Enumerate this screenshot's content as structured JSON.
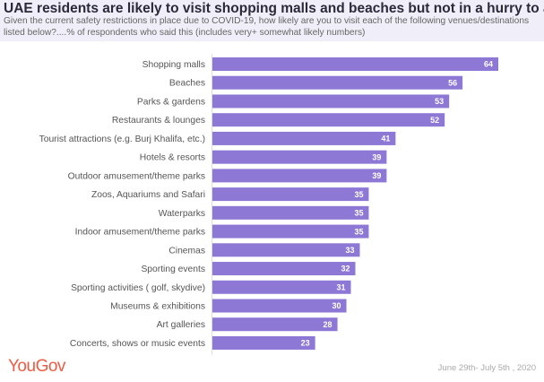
{
  "header": {
    "title": "UAE residents are likely to visit shopping malls and beaches but not in a hurry to attend concerts",
    "subtitle": "Given the current safety restrictions in place due to COVID-19, how likely are you to visit each of the following venues/destinations listed below?....% of respondents who said this (includes very+ somewhat likely numbers)"
  },
  "footer": {
    "logo": "YouGov",
    "date": "June 29th- July 5th , 2020"
  },
  "chart_data": {
    "type": "bar",
    "orientation": "horizontal",
    "categories": [
      "Shopping malls",
      "Beaches",
      "Parks & gardens",
      "Restaurants & lounges",
      "Tourist attractions (e.g. Burj Khalifa, etc.)",
      "Hotels & resorts",
      "Outdoor amusement/theme parks",
      "Zoos, Aquariums and Safari",
      "Waterparks",
      "Indoor amusement/theme parks",
      "Cinemas",
      "Sporting events",
      "Sporting activities ( golf, skydive)",
      "Museums & exhibitions",
      "Art galleries",
      "Concerts, shows or music events"
    ],
    "values": [
      64,
      56,
      53,
      52,
      41,
      39,
      39,
      35,
      35,
      35,
      33,
      32,
      31,
      30,
      28,
      23
    ],
    "data_labels": true,
    "grid": false,
    "bar_color": "#8e78d6"
  }
}
